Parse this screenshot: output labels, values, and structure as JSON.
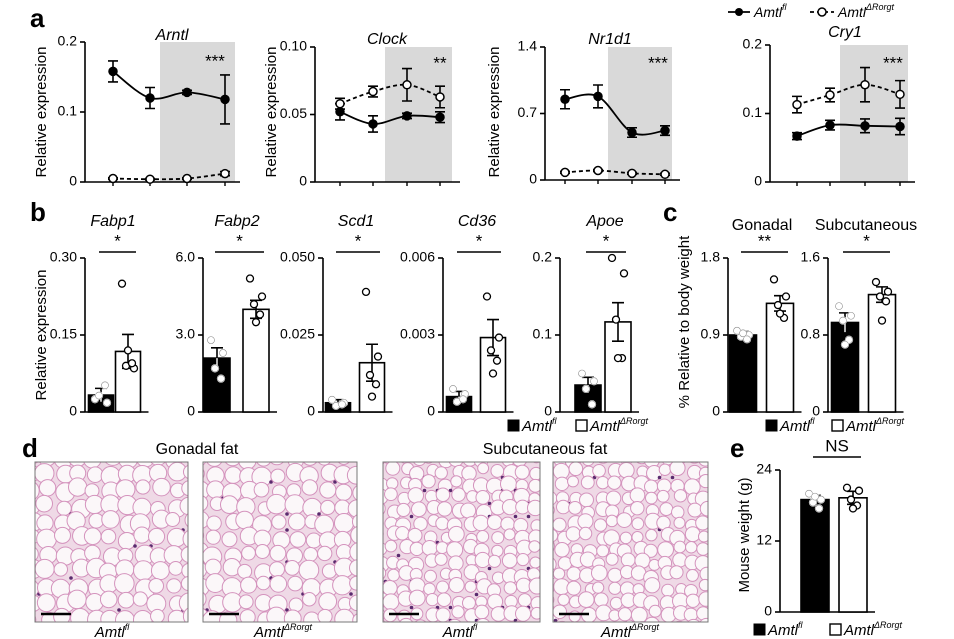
{
  "panel_labels": [
    "a",
    "b",
    "c",
    "d",
    "e"
  ],
  "genotypes": [
    {
      "name": "Amtl",
      "sup": "fl"
    },
    {
      "name": "Amtl",
      "sup": "ΔRorgt"
    }
  ],
  "histology": {
    "titles": [
      "Gonadal fat",
      "Subcutaneous fat"
    ]
  },
  "chart_data": [
    {
      "type": "line",
      "title": "Arntl",
      "y_label": "Relative expression",
      "annotation": "***",
      "categories": [
        null,
        null,
        null,
        null
      ],
      "ylim": [
        0,
        0.2
      ],
      "yticks": [
        0,
        0.1,
        0.2
      ],
      "series": [
        {
          "color": "#000000",
          "marker_fill": "#000000",
          "dashed": false,
          "values": [
            0.158,
            0.12,
            0.128,
            0.118
          ],
          "errors": [
            0.015,
            0.015,
            0.003,
            0.035
          ]
        },
        {
          "color": "#000000",
          "marker_fill": "#ffffff",
          "dashed": true,
          "values": [
            0.005,
            0.004,
            0.005,
            0.012
          ],
          "errors": [
            0.001,
            0.001,
            0.001,
            0.003
          ]
        }
      ]
    },
    {
      "type": "line",
      "title": "Clock",
      "y_label": "Relative expression",
      "annotation": "**",
      "categories": [
        null,
        null,
        null,
        null
      ],
      "ylim": [
        0,
        0.1
      ],
      "yticks": [
        0,
        0.05,
        {
          "value": 0.1,
          "label": "0.10"
        }
      ],
      "series": [
        {
          "color": "#000000",
          "marker_fill": "#000000",
          "dashed": false,
          "values": [
            0.052,
            0.043,
            0.049,
            0.048
          ],
          "errors": [
            0.006,
            0.006,
            0.002,
            0.004
          ]
        },
        {
          "color": "#000000",
          "marker_fill": "#ffffff",
          "dashed": true,
          "values": [
            0.058,
            0.067,
            0.072,
            0.063
          ],
          "errors": [
            0.004,
            0.004,
            0.012,
            0.008
          ]
        }
      ]
    },
    {
      "type": "line",
      "title": "Nr1d1",
      "y_label": "Relative expression",
      "annotation": "***",
      "categories": [
        null,
        null,
        null,
        null
      ],
      "ylim": [
        0,
        1.4
      ],
      "yticks": [
        0,
        0.7,
        1.4
      ],
      "series": [
        {
          "color": "#000000",
          "marker_fill": "#000000",
          "dashed": false,
          "values": [
            0.85,
            0.88,
            0.5,
            0.52
          ],
          "errors": [
            0.1,
            0.12,
            0.05,
            0.05
          ]
        },
        {
          "color": "#000000",
          "marker_fill": "#ffffff",
          "dashed": true,
          "values": [
            0.08,
            0.1,
            0.07,
            0.06
          ],
          "errors": [
            0.01,
            0.01,
            0.01,
            0.01
          ]
        }
      ]
    },
    {
      "type": "line",
      "title": "Cry1",
      "annotation": "***",
      "categories": [
        null,
        null,
        null,
        null
      ],
      "ylim": [
        0,
        0.2
      ],
      "yticks": [
        0,
        0.1,
        0.2
      ],
      "series": [
        {
          "color": "#000000",
          "marker_fill": "#000000",
          "dashed": false,
          "values": [
            0.067,
            0.083,
            0.082,
            0.081
          ],
          "errors": [
            0.005,
            0.007,
            0.01,
            0.012
          ]
        },
        {
          "color": "#000000",
          "marker_fill": "#ffffff",
          "dashed": true,
          "values": [
            0.113,
            0.127,
            0.142,
            0.128
          ],
          "errors": [
            0.012,
            0.01,
            0.025,
            0.02
          ]
        }
      ]
    },
    {
      "type": "bar",
      "title": "Fabp1",
      "y_label": "Relative expression",
      "annotation": "*",
      "categories": [
        null,
        null
      ],
      "colors": [
        "#000000",
        "#ffffff"
      ],
      "ylim": [
        0,
        0.3
      ],
      "yticks": [
        0,
        0.15,
        {
          "value": 0.3,
          "label": "0.30"
        }
      ],
      "values": [
        0.033,
        0.118
      ],
      "errors": [
        0.013,
        0.033
      ],
      "points": [
        [
          0.025,
          0.018,
          0.032,
          0.052
        ],
        [
          0.25,
          0.085,
          0.09,
          0.095,
          0.12
        ]
      ]
    },
    {
      "type": "bar",
      "title": "Fabp2",
      "annotation": "*",
      "categories": [
        null,
        null
      ],
      "colors": [
        "#000000",
        "#ffffff"
      ],
      "ylim": [
        0,
        6
      ],
      "yticks": [
        0,
        {
          "value": 3,
          "label": "3.0"
        },
        {
          "value": 6,
          "label": "6.0"
        }
      ],
      "values": [
        2.1,
        4.0
      ],
      "errors": [
        0.4,
        0.35
      ],
      "points": [
        [
          2.8,
          2.3,
          1.7,
          1.3
        ],
        [
          5.2,
          4.5,
          4.2,
          3.8,
          3.5
        ]
      ]
    },
    {
      "type": "bar",
      "title": "Scd1",
      "annotation": "*",
      "categories": [
        null,
        null
      ],
      "colors": [
        "#000000",
        "#ffffff"
      ],
      "ylim": [
        0,
        0.05
      ],
      "yticks": [
        0,
        0.025,
        {
          "value": 0.05,
          "label": "0.050"
        }
      ],
      "values": [
        0.003,
        0.016
      ],
      "errors": [
        0.001,
        0.006
      ],
      "points": [
        [
          0.004,
          0.003,
          0.002,
          0.0025
        ],
        [
          0.039,
          0.018,
          0.012,
          0.009,
          0.005
        ]
      ]
    },
    {
      "type": "bar",
      "title": "Cd36",
      "annotation": "*",
      "categories": [
        null,
        null
      ],
      "colors": [
        "#000000",
        "#ffffff"
      ],
      "ylim": [
        0,
        0.006
      ],
      "yticks": [
        0,
        0.003,
        0.006
      ],
      "values": [
        0.0006,
        0.0029
      ],
      "errors": [
        0.0002,
        0.0007
      ],
      "points": [
        [
          0.0009,
          0.0007,
          0.0004,
          0.0005
        ],
        [
          0.0045,
          0.0029,
          0.0024,
          0.002,
          0.0015
        ]
      ]
    },
    {
      "type": "bar",
      "title": "Apoe",
      "annotation": "*",
      "categories": [
        null,
        null
      ],
      "colors": [
        "#000000",
        "#ffffff"
      ],
      "ylim": [
        0,
        0.2
      ],
      "yticks": [
        0,
        0.1,
        0.2
      ],
      "values": [
        0.035,
        0.117
      ],
      "errors": [
        0.01,
        0.025
      ],
      "points": [
        [
          0.05,
          0.04,
          0.03,
          0.01
        ],
        [
          0.2,
          0.18,
          0.12,
          0.07,
          0.07
        ]
      ]
    },
    {
      "type": "bar",
      "title": "Gonadal",
      "y_label": "% Relative to body weight",
      "annotation": "**",
      "categories": [
        null,
        null
      ],
      "colors": [
        "#000000",
        "#ffffff"
      ],
      "ylim": [
        0,
        1.8
      ],
      "yticks": [
        0,
        0.9,
        1.8
      ],
      "values": [
        0.9,
        1.27
      ],
      "errors": [
        0.04,
        0.09
      ],
      "points": [
        [
          0.95,
          0.9,
          0.88,
          0.85,
          0.92
        ],
        [
          1.55,
          1.35,
          1.25,
          1.1,
          1.15
        ]
      ]
    },
    {
      "type": "bar",
      "title": "Subcutaneous",
      "annotation": "*",
      "categories": [
        null,
        null
      ],
      "colors": [
        "#000000",
        "#ffffff"
      ],
      "ylim": [
        0,
        1.6
      ],
      "yticks": [
        0,
        0.8,
        1.6
      ],
      "values": [
        0.93,
        1.22
      ],
      "errors": [
        0.1,
        0.08
      ],
      "points": [
        [
          1.1,
          1.0,
          0.95,
          0.75,
          0.7
        ],
        [
          1.35,
          1.25,
          1.2,
          1.15,
          0.95
        ]
      ]
    },
    {
      "type": "bar",
      "y_label": "Mouse weight (g)",
      "annotation": "NS",
      "categories": [
        null,
        null
      ],
      "colors": [
        "#000000",
        "#ffffff"
      ],
      "ylim": [
        0,
        24
      ],
      "yticks": [
        0,
        12,
        24
      ],
      "values": [
        19,
        19.3
      ],
      "errors": [
        0.7,
        1.1
      ],
      "points": [
        [
          20,
          19,
          18.5,
          17.5,
          19.5
        ],
        [
          21,
          20.5,
          19,
          18,
          17.5
        ]
      ]
    }
  ]
}
